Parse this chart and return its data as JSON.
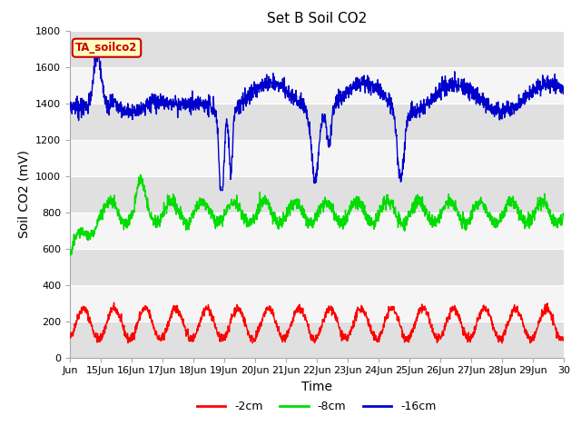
{
  "title": "Set B Soil CO2",
  "ylabel": "Soil CO2 (mV)",
  "xlabel": "Time",
  "ylim": [
    0,
    1800
  ],
  "xlim": [
    14,
    30
  ],
  "xtick_positions": [
    14,
    15,
    16,
    17,
    18,
    19,
    20,
    21,
    22,
    23,
    24,
    25,
    26,
    27,
    28,
    29,
    30
  ],
  "xtick_labels": [
    "Jun",
    "15Jun",
    "16Jun",
    "17Jun",
    "18Jun",
    "19Jun",
    "20Jun",
    "21Jun",
    "22Jun",
    "23Jun",
    "24Jun",
    "25Jun",
    "26Jun",
    "27Jun",
    "28Jun",
    "29Jun",
    "30"
  ],
  "ytick_positions": [
    0,
    200,
    400,
    600,
    800,
    1000,
    1200,
    1400,
    1600,
    1800
  ],
  "legend_label": "TA_soilco2",
  "legend_facecolor": "#ffffc0",
  "legend_edgecolor": "#cc0000",
  "line_colors": [
    "#ff0000",
    "#00dd00",
    "#0000cc"
  ],
  "line_labels": [
    "-2cm",
    "-8cm",
    "-16cm"
  ],
  "line_width": 1.0,
  "background_color": "#ffffff",
  "band_colors": [
    "#e0e0e0",
    "#f5f5f5"
  ],
  "band_edges": [
    0,
    200,
    400,
    600,
    800,
    1000,
    1200,
    1400,
    1600,
    1800
  ],
  "title_fontsize": 11,
  "axis_label_fontsize": 10,
  "tick_label_fontsize": 8
}
